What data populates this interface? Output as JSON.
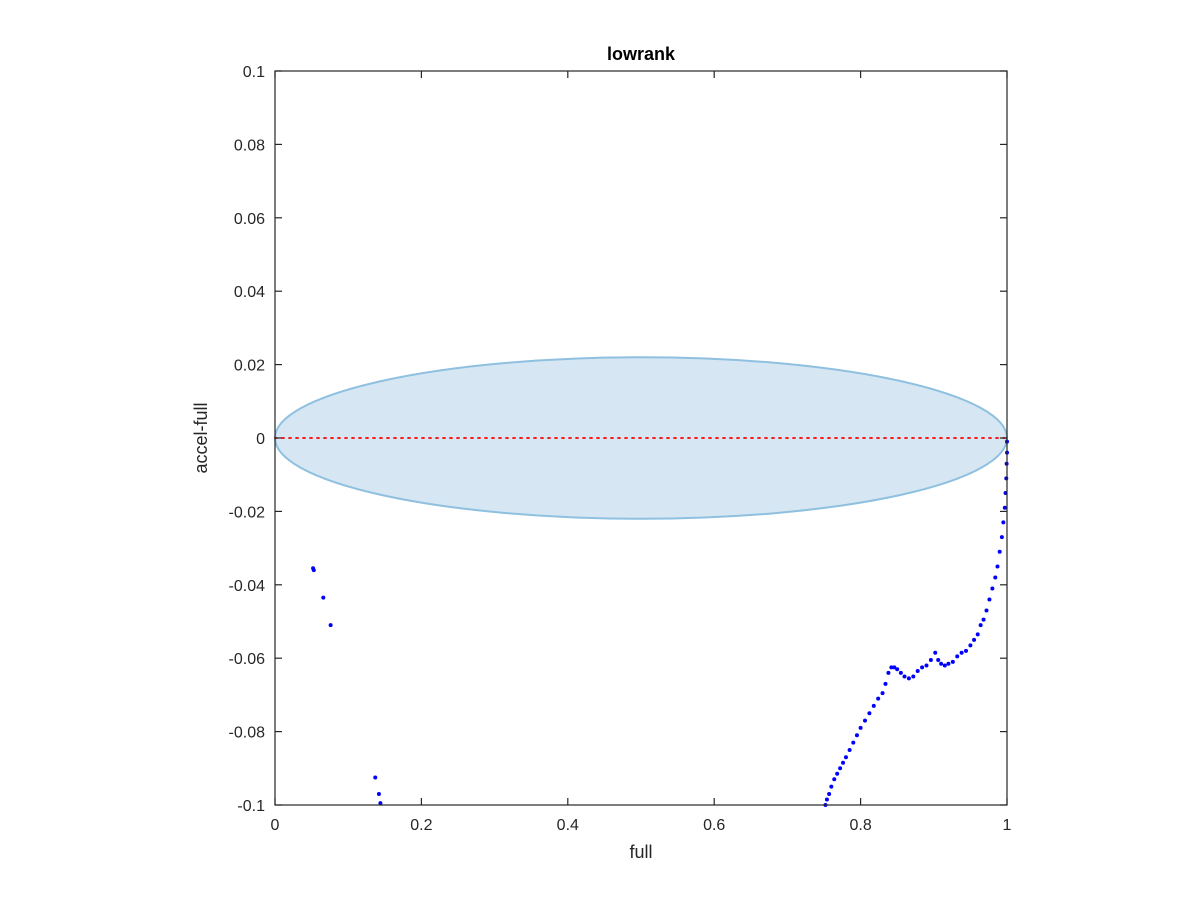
{
  "chart_data": {
    "type": "scatter",
    "title": "lowrank",
    "xlabel": "full",
    "ylabel": "accel-full",
    "xlim": [
      0,
      1
    ],
    "ylim": [
      -0.1,
      0.1
    ],
    "xticks": [
      0,
      0.2,
      0.4,
      0.6,
      0.8,
      1
    ],
    "xtick_labels": [
      "0",
      "0.2",
      "0.4",
      "0.6",
      "0.8",
      "1"
    ],
    "yticks": [
      -0.1,
      -0.08,
      -0.06,
      -0.04,
      -0.02,
      0,
      0.02,
      0.04,
      0.06,
      0.08,
      0.1
    ],
    "ytick_labels": [
      "-0.1",
      "-0.08",
      "-0.06",
      "-0.04",
      "-0.02",
      "0",
      "0.02",
      "0.04",
      "0.06",
      "0.08",
      "0.1"
    ],
    "grid": false,
    "box": true,
    "ellipse": {
      "center": [
        0.5,
        0
      ],
      "x_radius": 0.5,
      "y_radius": 0.022,
      "fill_color": "#d6e7f3",
      "edge_color": "#8fc0e0"
    },
    "reference_line": {
      "y": 0,
      "color": "#ff0000",
      "style": "dotted"
    },
    "series": [
      {
        "marker_color": "#0000ff",
        "points": [
          [
            0.052,
            -0.0355
          ],
          [
            0.053,
            -0.036
          ],
          [
            0.066,
            -0.0435
          ],
          [
            0.076,
            -0.051
          ],
          [
            0.137,
            -0.0925
          ],
          [
            0.142,
            -0.097
          ],
          [
            0.144,
            -0.0995
          ],
          [
            0.752,
            -0.1
          ],
          [
            0.754,
            -0.0985
          ],
          [
            0.757,
            -0.097
          ],
          [
            0.76,
            -0.095
          ],
          [
            0.764,
            -0.093
          ],
          [
            0.768,
            -0.0915
          ],
          [
            0.772,
            -0.09
          ],
          [
            0.776,
            -0.0885
          ],
          [
            0.78,
            -0.087
          ],
          [
            0.785,
            -0.085
          ],
          [
            0.79,
            -0.083
          ],
          [
            0.795,
            -0.081
          ],
          [
            0.8,
            -0.079
          ],
          [
            0.806,
            -0.077
          ],
          [
            0.812,
            -0.075
          ],
          [
            0.818,
            -0.073
          ],
          [
            0.824,
            -0.071
          ],
          [
            0.83,
            -0.0695
          ],
          [
            0.834,
            -0.067
          ],
          [
            0.838,
            -0.064
          ],
          [
            0.842,
            -0.0625
          ],
          [
            0.846,
            -0.0625
          ],
          [
            0.85,
            -0.063
          ],
          [
            0.855,
            -0.064
          ],
          [
            0.86,
            -0.065
          ],
          [
            0.866,
            -0.0655
          ],
          [
            0.872,
            -0.065
          ],
          [
            0.878,
            -0.0635
          ],
          [
            0.884,
            -0.0625
          ],
          [
            0.89,
            -0.062
          ],
          [
            0.896,
            -0.0605
          ],
          [
            0.902,
            -0.0585
          ],
          [
            0.906,
            -0.0605
          ],
          [
            0.91,
            -0.0615
          ],
          [
            0.915,
            -0.062
          ],
          [
            0.92,
            -0.0615
          ],
          [
            0.926,
            -0.061
          ],
          [
            0.932,
            -0.0595
          ],
          [
            0.938,
            -0.0585
          ],
          [
            0.944,
            -0.058
          ],
          [
            0.95,
            -0.0565
          ],
          [
            0.955,
            -0.055
          ],
          [
            0.96,
            -0.0535
          ],
          [
            0.964,
            -0.051
          ],
          [
            0.968,
            -0.0495
          ],
          [
            0.972,
            -0.047
          ],
          [
            0.976,
            -0.044
          ],
          [
            0.98,
            -0.041
          ],
          [
            0.984,
            -0.038
          ],
          [
            0.987,
            -0.035
          ],
          [
            0.99,
            -0.031
          ],
          [
            0.993,
            -0.027
          ],
          [
            0.995,
            -0.023
          ],
          [
            0.997,
            -0.019
          ],
          [
            0.998,
            -0.015
          ],
          [
            0.999,
            -0.011
          ],
          [
            0.9995,
            -0.007
          ],
          [
            1.0,
            -0.004
          ],
          [
            1.0,
            -0.001
          ]
        ]
      }
    ]
  }
}
